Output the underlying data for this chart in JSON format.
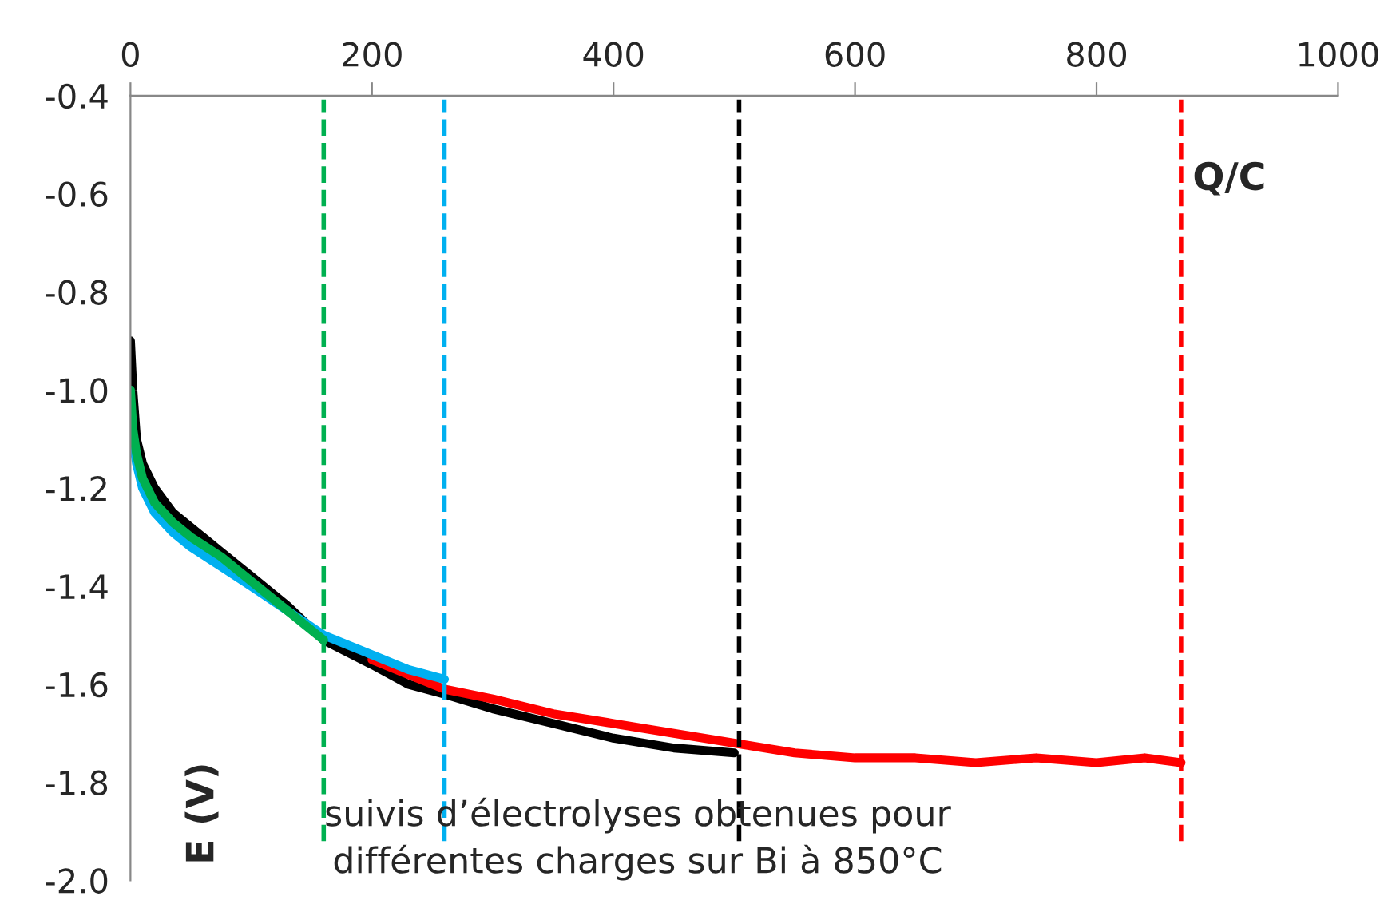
{
  "chart_data": {
    "type": "line",
    "xlabel": "Q/C",
    "ylabel": "E (V)",
    "annotations": [
      "suivis d’électrolyses obtenues pour\ndifférentes charges sur Bi à 850°C"
    ],
    "xlim": [
      0,
      1000
    ],
    "xticks": [
      0,
      200,
      400,
      600,
      800,
      1000
    ],
    "ylim": [
      -2.0,
      -0.4
    ],
    "yticks": [
      {
        "value": -2.0,
        "label": "-2.0"
      },
      {
        "value": -1.8,
        "label": "-1.8"
      },
      {
        "value": -1.6,
        "label": "-1.6"
      },
      {
        "value": -1.4,
        "label": "-1.4"
      },
      {
        "value": -1.2,
        "label": "-1.2"
      },
      {
        "value": -1.0,
        "label": "-1.0"
      },
      {
        "value": -0.8,
        "label": "-0.8"
      },
      {
        "value": -0.6,
        "label": "-0.6"
      },
      {
        "value": -0.4,
        "label": "-0.4"
      }
    ],
    "grid": false,
    "legend": false,
    "marker": "none",
    "line_style": "solid",
    "series": [
      {
        "color": "#000000",
        "x": [
          0,
          2,
          5,
          10,
          20,
          35,
          50,
          75,
          100,
          130,
          160,
          200,
          230,
          260,
          300,
          350,
          400,
          450,
          500
        ],
        "values": [
          -0.9,
          -1.0,
          -1.1,
          -1.15,
          -1.2,
          -1.25,
          -1.28,
          -1.33,
          -1.38,
          -1.44,
          -1.51,
          -1.56,
          -1.6,
          -1.62,
          -1.65,
          -1.68,
          -1.71,
          -1.73,
          -1.74
        ]
      },
      {
        "color": "#ff0000",
        "x": [
          200,
          230,
          260,
          300,
          350,
          400,
          450,
          500,
          550,
          600,
          650,
          700,
          750,
          800,
          840,
          870
        ],
        "values": [
          -1.55,
          -1.58,
          -1.61,
          -1.63,
          -1.66,
          -1.68,
          -1.7,
          -1.72,
          -1.74,
          -1.75,
          -1.75,
          -1.76,
          -1.75,
          -1.76,
          -1.75,
          -1.76
        ]
      },
      {
        "color": "#00b0f0",
        "x": [
          0,
          2,
          5,
          10,
          20,
          35,
          50,
          75,
          100,
          130,
          160,
          200,
          230,
          260
        ],
        "values": [
          -1.05,
          -1.1,
          -1.15,
          -1.2,
          -1.25,
          -1.29,
          -1.32,
          -1.36,
          -1.4,
          -1.45,
          -1.5,
          -1.54,
          -1.57,
          -1.59
        ]
      },
      {
        "color": "#00b050",
        "x": [
          0,
          2,
          5,
          10,
          20,
          35,
          50,
          75,
          100,
          130,
          160
        ],
        "values": [
          -1.0,
          -1.08,
          -1.13,
          -1.18,
          -1.23,
          -1.27,
          -1.3,
          -1.34,
          -1.39,
          -1.45,
          -1.51
        ]
      }
    ],
    "ref_lines": [
      {
        "axis": "x",
        "value": 160,
        "color": "#00b050",
        "line_style": "dashed"
      },
      {
        "axis": "x",
        "value": 260,
        "color": "#00b0f0",
        "line_style": "dashed"
      },
      {
        "axis": "x",
        "value": 504,
        "color": "#000000",
        "line_style": "dashed"
      },
      {
        "axis": "x",
        "value": 870,
        "color": "#ff0000",
        "line_style": "dashed"
      }
    ]
  }
}
